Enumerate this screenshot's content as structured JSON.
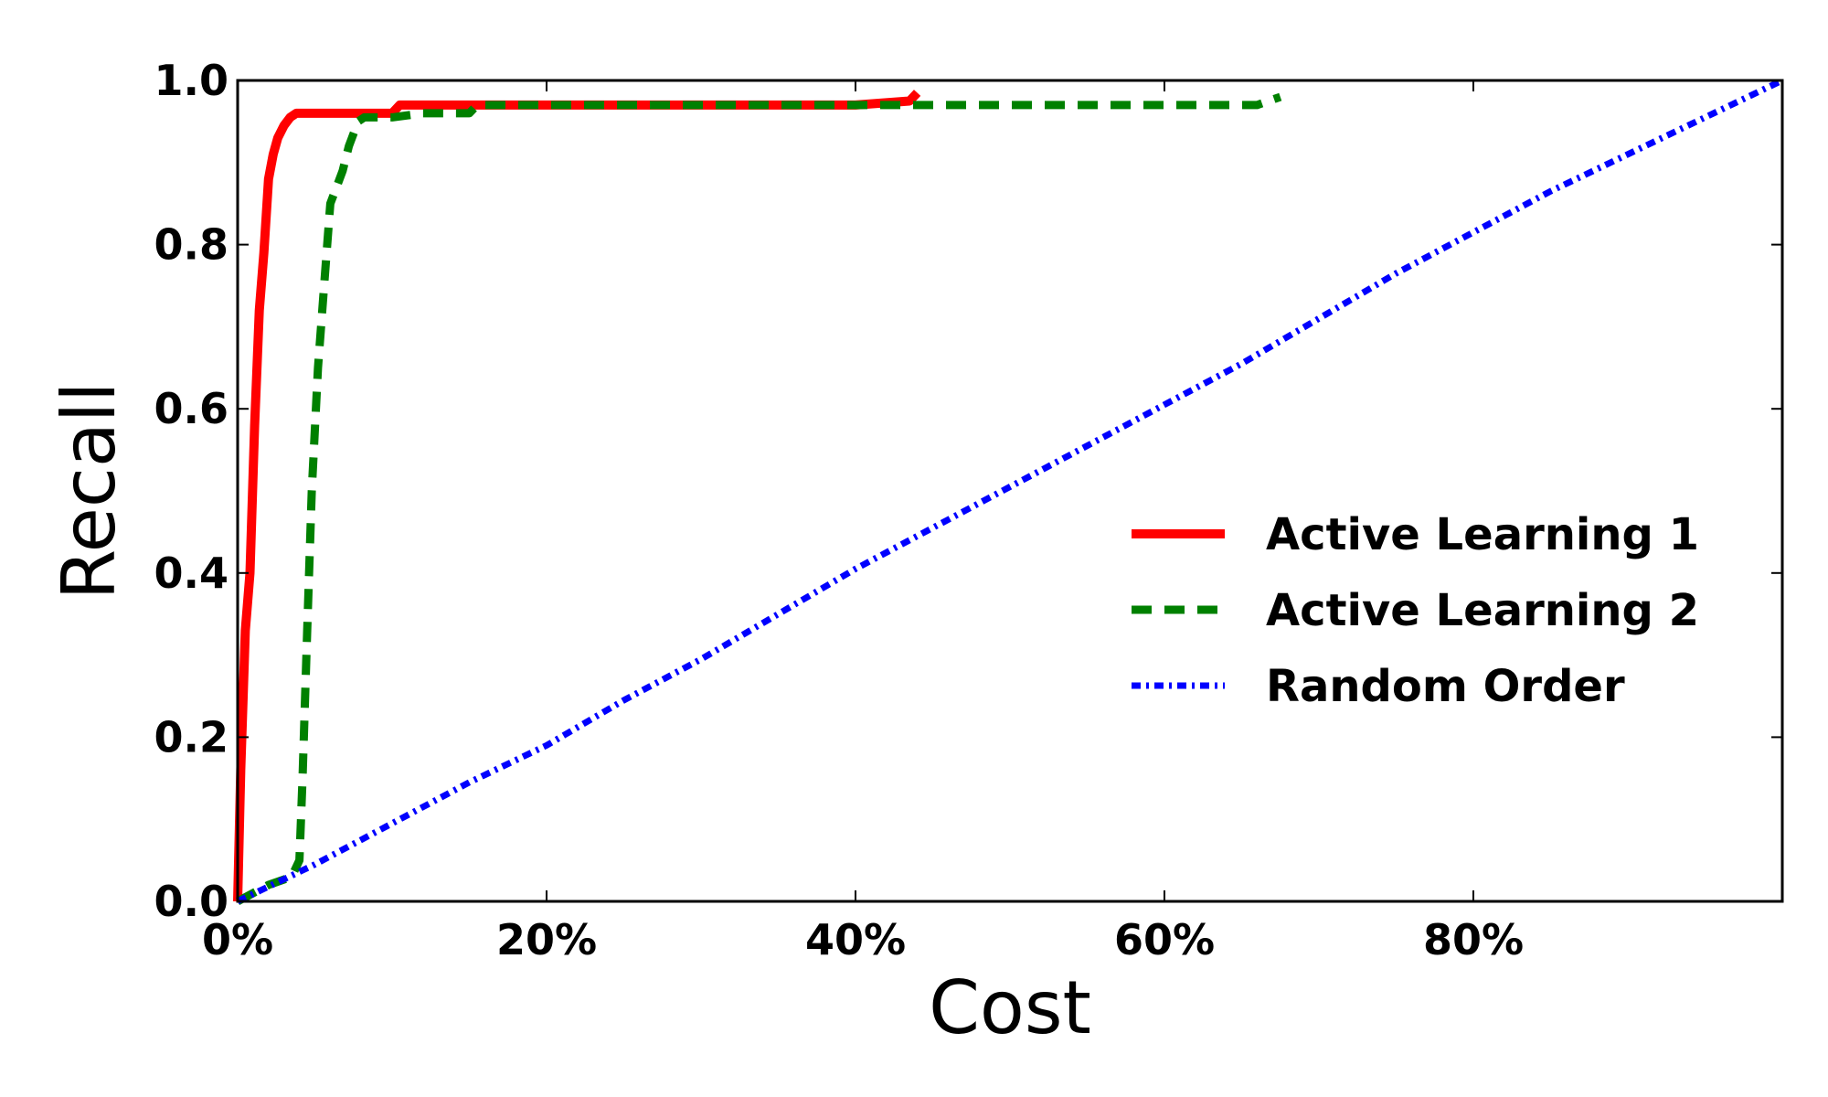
{
  "chart_data": {
    "type": "line",
    "title": "",
    "xlabel": "Cost",
    "ylabel": "Recall",
    "xlim": [
      0,
      1
    ],
    "ylim": [
      0,
      1
    ],
    "xticks": [
      {
        "value": 0.0,
        "label": "0%"
      },
      {
        "value": 0.2,
        "label": "20%"
      },
      {
        "value": 0.4,
        "label": "40%"
      },
      {
        "value": 0.6,
        "label": "60%"
      },
      {
        "value": 0.8,
        "label": "80%"
      }
    ],
    "yticks": [
      {
        "value": 0.0,
        "label": "0.0"
      },
      {
        "value": 0.2,
        "label": "0.2"
      },
      {
        "value": 0.4,
        "label": "0.4"
      },
      {
        "value": 0.6,
        "label": "0.6"
      },
      {
        "value": 0.8,
        "label": "0.8"
      },
      {
        "value": 1.0,
        "label": "1.0"
      }
    ],
    "grid": false,
    "legend_position": "center-right",
    "series": [
      {
        "name": "Active Learning 1",
        "color": "#ff0000",
        "style": "solid",
        "x": [
          0.0,
          0.002,
          0.005,
          0.008,
          0.011,
          0.014,
          0.017,
          0.02,
          0.023,
          0.026,
          0.03,
          0.034,
          0.038,
          0.042,
          0.045,
          0.06,
          0.08,
          0.1,
          0.105,
          0.15,
          0.2,
          0.25,
          0.3,
          0.35,
          0.4,
          0.435,
          0.44
        ],
        "y": [
          0.0,
          0.16,
          0.33,
          0.4,
          0.58,
          0.72,
          0.79,
          0.88,
          0.91,
          0.93,
          0.945,
          0.955,
          0.96,
          0.96,
          0.96,
          0.96,
          0.96,
          0.96,
          0.97,
          0.97,
          0.97,
          0.97,
          0.97,
          0.97,
          0.97,
          0.975,
          0.985
        ]
      },
      {
        "name": "Active Learning 2",
        "color": "#008000",
        "style": "dashed",
        "x": [
          0.0,
          0.02,
          0.035,
          0.04,
          0.042,
          0.045,
          0.048,
          0.052,
          0.056,
          0.06,
          0.064,
          0.068,
          0.072,
          0.078,
          0.082,
          0.09,
          0.1,
          0.12,
          0.15,
          0.155,
          0.2,
          0.3,
          0.4,
          0.5,
          0.6,
          0.66,
          0.675
        ],
        "y": [
          0.0,
          0.02,
          0.03,
          0.05,
          0.15,
          0.33,
          0.5,
          0.65,
          0.75,
          0.85,
          0.87,
          0.89,
          0.92,
          0.95,
          0.955,
          0.955,
          0.955,
          0.96,
          0.96,
          0.97,
          0.97,
          0.97,
          0.97,
          0.97,
          0.97,
          0.97,
          0.98
        ]
      },
      {
        "name": "Random Order",
        "color": "#0000ff",
        "style": "dashdot",
        "x": [
          0.0,
          0.05,
          0.1,
          0.15,
          0.2,
          0.25,
          0.3,
          0.35,
          0.4,
          0.45,
          0.5,
          0.55,
          0.6,
          0.65,
          0.7,
          0.75,
          0.8,
          0.85,
          0.9,
          0.95,
          1.0
        ],
        "y": [
          0.0,
          0.045,
          0.095,
          0.145,
          0.19,
          0.245,
          0.295,
          0.35,
          0.405,
          0.455,
          0.505,
          0.555,
          0.605,
          0.655,
          0.71,
          0.765,
          0.815,
          0.865,
          0.91,
          0.955,
          1.0
        ]
      }
    ]
  }
}
